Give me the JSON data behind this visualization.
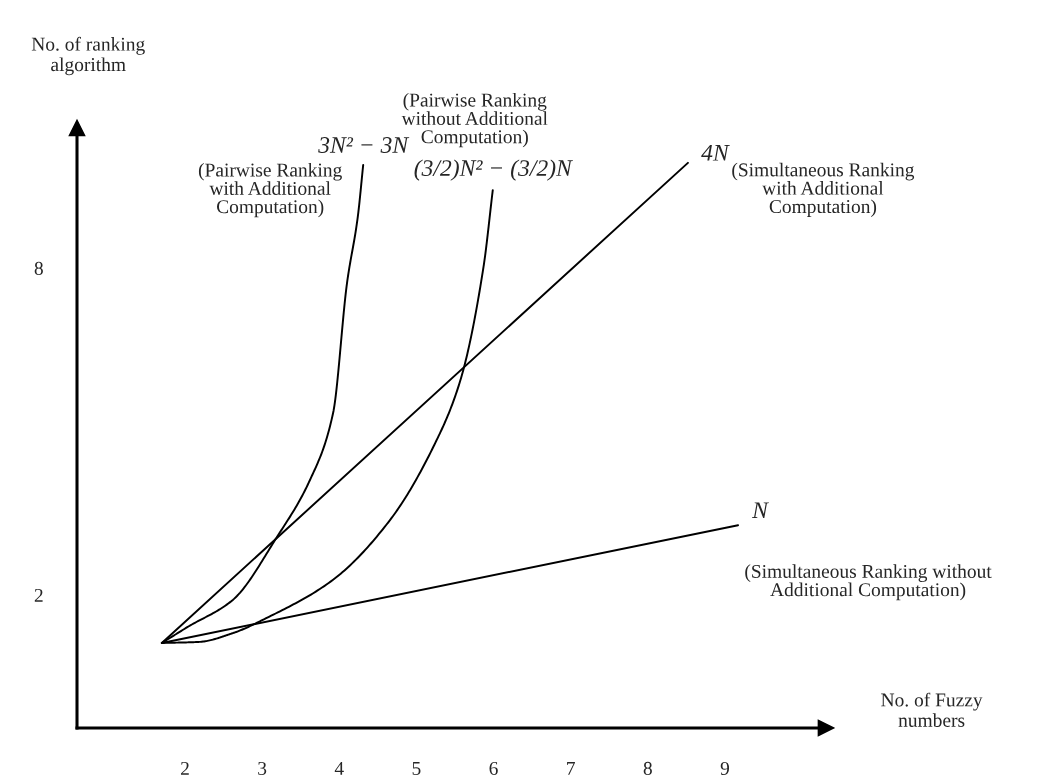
{
  "chart_data": {
    "type": "line",
    "xlabel": "No. of Fuzzy\nnumbers",
    "ylabel": "No. of ranking\nalgorithm",
    "xlim": [
      0.6,
      10.31
    ],
    "ylim": [
      -0.44,
      10.57
    ],
    "xticks": [
      2,
      3,
      4,
      5,
      6,
      7,
      8,
      9
    ],
    "yticks": [
      2,
      8
    ],
    "grid": false,
    "legend": false,
    "marker": "none",
    "line_style": "solid",
    "series": [
      {
        "name": "3N² − 3N",
        "color": "#000000",
        "x": [
          1.7,
          2.03,
          2.62,
          3.19,
          3.62,
          3.92,
          4.1,
          4.24,
          4.31
        ],
        "values": [
          1.12,
          1.41,
          1.91,
          3.06,
          4.11,
          5.34,
          7.72,
          8.94,
          9.89
        ]
      },
      {
        "name": "(3/2)N² − (3/2)N",
        "color": "#000000",
        "x": [
          1.71,
          2.19,
          2.62,
          3.06,
          3.92,
          4.66,
          5.22,
          5.57,
          5.87,
          5.99
        ],
        "values": [
          1.12,
          1.14,
          1.3,
          1.58,
          2.28,
          3.38,
          4.72,
          5.94,
          8.02,
          9.43
        ]
      },
      {
        "name": "4N",
        "color": "#000000",
        "x": [
          1.7,
          8.52
        ],
        "values": [
          1.12,
          9.93
        ]
      },
      {
        "name": "N",
        "color": "#000000",
        "x": [
          1.7,
          9.17
        ],
        "values": [
          1.12,
          3.28
        ]
      }
    ],
    "annotations": [
      "(Pairwise Ranking\nwith Additional\nComputation)",
      "(Pairwise Ranking\nwithout Additional\nComputation)",
      "(Simultaneous Ranking\nwith Additional\nComputation)",
      "(Simultaneous Ranking without\nAdditional Computation)"
    ]
  }
}
